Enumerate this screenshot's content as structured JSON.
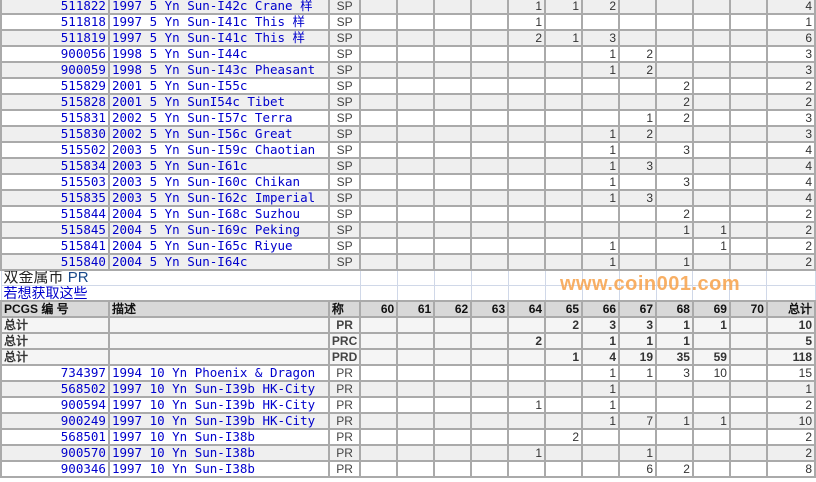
{
  "grades": [
    "60",
    "61",
    "62",
    "63",
    "64",
    "65",
    "66",
    "67",
    "68",
    "69",
    "70"
  ],
  "sp_rows": [
    {
      "pcgs": "511822",
      "desc": "1997 5 Yn Sun-I42c Crane 样",
      "type": "SP",
      "v": {
        "64": "1",
        "65": "1",
        "66": "2"
      },
      "total": "4"
    },
    {
      "pcgs": "511818",
      "desc": "1997 5 Yn Sun-I41c This 样",
      "type": "SP",
      "v": {
        "64": "1"
      },
      "total": "1"
    },
    {
      "pcgs": "511819",
      "desc": "1997 5 Yn Sun-I41c This 样",
      "type": "SP",
      "v": {
        "64": "2",
        "65": "1",
        "66": "3"
      },
      "total": "6"
    },
    {
      "pcgs": "900056",
      "desc": "1998 5 Yn Sun-I44c",
      "type": "SP",
      "v": {
        "66": "1",
        "67": "2"
      },
      "total": "3"
    },
    {
      "pcgs": "900059",
      "desc": "1998 5 Yn Sun-I43c Pheasant",
      "type": "SP",
      "v": {
        "66": "1",
        "67": "2"
      },
      "total": "3"
    },
    {
      "pcgs": "515829",
      "desc": "2001 5 Yn Sun-I55c",
      "type": "SP",
      "v": {
        "68": "2"
      },
      "total": "2"
    },
    {
      "pcgs": "515828",
      "desc": "2001 5 Yn SunI54c Tibet",
      "type": "SP",
      "v": {
        "68": "2"
      },
      "total": "2"
    },
    {
      "pcgs": "515831",
      "desc": "2002 5 Yn Sun-I57c Terra",
      "type": "SP",
      "v": {
        "67": "1",
        "68": "2"
      },
      "total": "3"
    },
    {
      "pcgs": "515830",
      "desc": "2002 5 Yn Sun-I56c Great",
      "type": "SP",
      "v": {
        "66": "1",
        "67": "2"
      },
      "total": "3"
    },
    {
      "pcgs": "515502",
      "desc": "2003 5 Yn Sun-I59c Chaotian",
      "type": "SP",
      "v": {
        "66": "1",
        "68": "3"
      },
      "total": "4"
    },
    {
      "pcgs": "515834",
      "desc": "2003 5 Yn Sun-I61c",
      "type": "SP",
      "v": {
        "66": "1",
        "67": "3"
      },
      "total": "4"
    },
    {
      "pcgs": "515503",
      "desc": "2003 5 Yn Sun-I60c Chikan",
      "type": "SP",
      "v": {
        "66": "1",
        "68": "3"
      },
      "total": "4"
    },
    {
      "pcgs": "515835",
      "desc": "2003 5 Yn Sun-I62c Imperial",
      "type": "SP",
      "v": {
        "66": "1",
        "67": "3"
      },
      "total": "4"
    },
    {
      "pcgs": "515844",
      "desc": "2004 5 Yn Sun-I68c Suzhou",
      "type": "SP",
      "v": {
        "68": "2"
      },
      "total": "2"
    },
    {
      "pcgs": "515845",
      "desc": "2004 5 Yn Sun-I69c Peking",
      "type": "SP",
      "v": {
        "68": "1",
        "69": "1"
      },
      "total": "2"
    },
    {
      "pcgs": "515841",
      "desc": "2004 5 Yn Sun-I65c Riyue",
      "type": "SP",
      "v": {
        "66": "1",
        "69": "1"
      },
      "total": "2"
    },
    {
      "pcgs": "515840",
      "desc": "2004 5 Yn Sun-I64c",
      "type": "SP",
      "v": {
        "66": "1",
        "68": "1"
      },
      "total": "2"
    }
  ],
  "section": {
    "title": "双金属币",
    "code": "PR",
    "link": "若想获取这些"
  },
  "header": {
    "pcgs": "PCGS 编 号",
    "desc": "描述",
    "type": "称",
    "total": "总计"
  },
  "totals": [
    {
      "label": "总计",
      "type": "PR",
      "v": {
        "65": "2",
        "66": "3",
        "67": "3",
        "68": "1",
        "69": "1"
      },
      "total": "10"
    },
    {
      "label": "总计",
      "type": "PRC",
      "v": {
        "64": "2",
        "66": "1",
        "67": "1",
        "68": "1"
      },
      "total": "5"
    },
    {
      "label": "总计",
      "type": "PRD",
      "v": {
        "65": "1",
        "66": "4",
        "67": "19",
        "68": "35",
        "69": "59"
      },
      "total": "118"
    }
  ],
  "pr_rows": [
    {
      "pcgs": "734397",
      "desc": "1994 10 Yn Phoenix & Dragon",
      "type": "PR",
      "v": {
        "66": "1",
        "67": "1",
        "68": "3",
        "69": "10"
      },
      "total": "15"
    },
    {
      "pcgs": "568502",
      "desc": "1997 10 Yn Sun-I39b HK-City",
      "type": "PR",
      "v": {
        "66": "1"
      },
      "total": "1"
    },
    {
      "pcgs": "900594",
      "desc": "1997 10 Yn Sun-I39b HK-City",
      "type": "PR",
      "v": {
        "64": "1",
        "66": "1"
      },
      "total": "2"
    },
    {
      "pcgs": "900249",
      "desc": "1997 10 Yn Sun-I39b HK-City",
      "type": "PR",
      "v": {
        "66": "1",
        "67": "7",
        "68": "1",
        "69": "1"
      },
      "total": "10"
    },
    {
      "pcgs": "568501",
      "desc": "1997 10 Yn Sun-I38b",
      "type": "PR",
      "v": {
        "65": "2"
      },
      "total": "2"
    },
    {
      "pcgs": "900570",
      "desc": "1997 10 Yn Sun-I38b",
      "type": "PR",
      "v": {
        "64": "1",
        "67": "1"
      },
      "total": "2"
    },
    {
      "pcgs": "900346",
      "desc": "1997 10 Yn Sun-I38b",
      "type": "PR",
      "v": {
        "67": "6",
        "68": "2"
      },
      "total": "8"
    }
  ],
  "watermark": "www.coin001.com",
  "colors": {
    "link": "#0000cc",
    "grid": "#aaaaaa",
    "header_bg": "#d8d8d8",
    "row_alt": "#efefef",
    "watermark": "#f7a24a"
  }
}
